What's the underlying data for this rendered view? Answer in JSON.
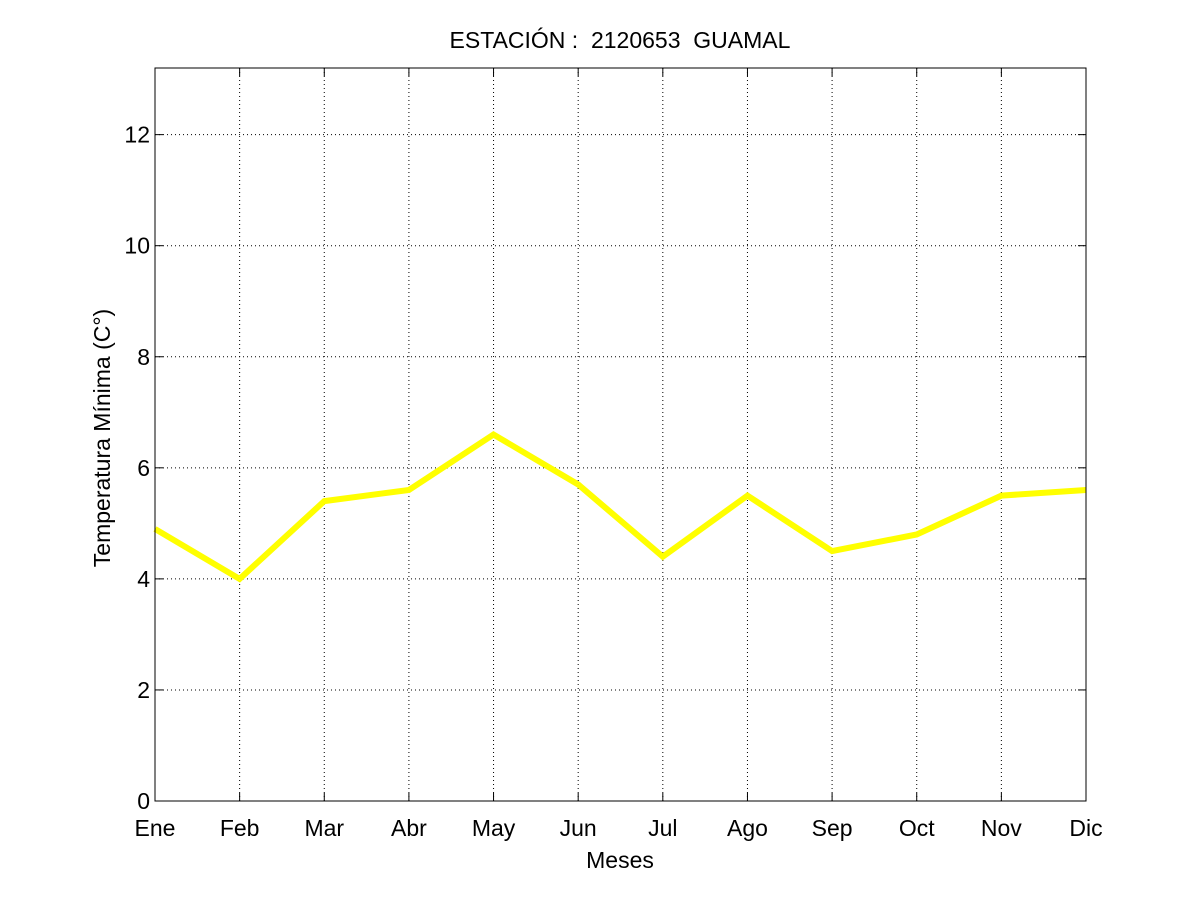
{
  "chart_data": {
    "type": "line",
    "title": "ESTACIÓN :  2120653  GUAMAL",
    "xlabel": "Meses",
    "ylabel": "Temperatura Mínima (C°)",
    "categories": [
      "Ene",
      "Feb",
      "Mar",
      "Abr",
      "May",
      "Jun",
      "Jul",
      "Ago",
      "Sep",
      "Oct",
      "Nov",
      "Dic"
    ],
    "series": [
      {
        "name": "Temperatura Mínima",
        "color": "#ffff00",
        "values": [
          4.9,
          4.0,
          5.4,
          5.6,
          6.6,
          5.7,
          4.4,
          5.5,
          4.5,
          4.8,
          5.5,
          5.6
        ]
      }
    ],
    "ylim": [
      0,
      13.2
    ],
    "yticks": [
      0,
      2,
      4,
      6,
      8,
      10,
      12
    ],
    "grid": true,
    "grid_style": "dotted"
  }
}
